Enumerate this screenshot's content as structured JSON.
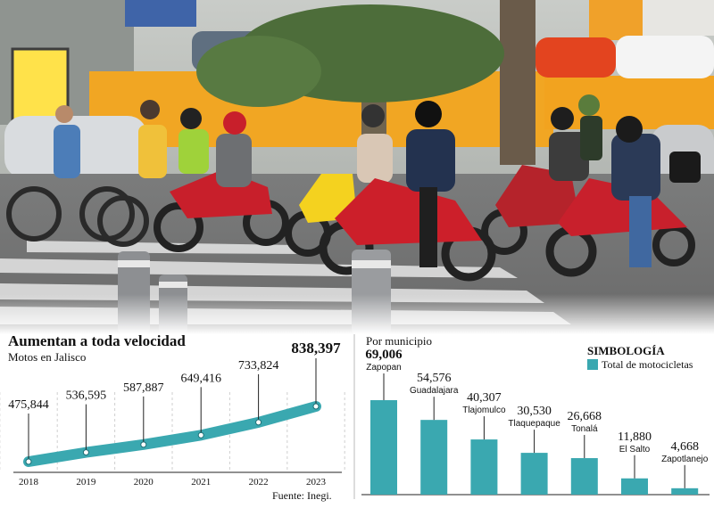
{
  "left_chart": {
    "title": "Aumentan a toda velocidad",
    "subtitle": "Motos en Jalisco",
    "source": "Fuente: Inegi."
  },
  "right_chart": {
    "title": "Por municipio",
    "legend_title": "SIMBOLOGÍA",
    "legend_label": "Total de motocicletas"
  },
  "colors": {
    "teal": "#3aa8b0",
    "dark": "#111111",
    "axis": "#222222"
  },
  "chart_data": [
    {
      "type": "line",
      "title": "Aumentan a toda velocidad",
      "subtitle": "Motos en Jalisco",
      "categories": [
        "2018",
        "2019",
        "2020",
        "2021",
        "2022",
        "2023"
      ],
      "values": [
        475844,
        536595,
        587887,
        649416,
        733824,
        838397
      ],
      "value_labels": [
        "475,844",
        "536,595",
        "587,887",
        "649,416",
        "733,824",
        "838,397"
      ],
      "grid": "vertical dashed",
      "source": "Fuente: Inegi."
    },
    {
      "type": "bar",
      "title": "Por municipio",
      "categories": [
        "Zapopan",
        "Guadalajara",
        "Tlajomulco",
        "Tlaquepaque",
        "Tonalá",
        "El Salto",
        "Zapotlanejo"
      ],
      "values": [
        69006,
        54576,
        40307,
        30530,
        26668,
        11880,
        4668
      ],
      "value_labels": [
        "69,006",
        "54,576",
        "40,307",
        "30,530",
        "26,668",
        "11,880",
        "4,668"
      ],
      "legend": {
        "title": "SIMBOLOGÍA",
        "entries": [
          "Total de motocicletas"
        ],
        "position": "top-right"
      }
    }
  ]
}
